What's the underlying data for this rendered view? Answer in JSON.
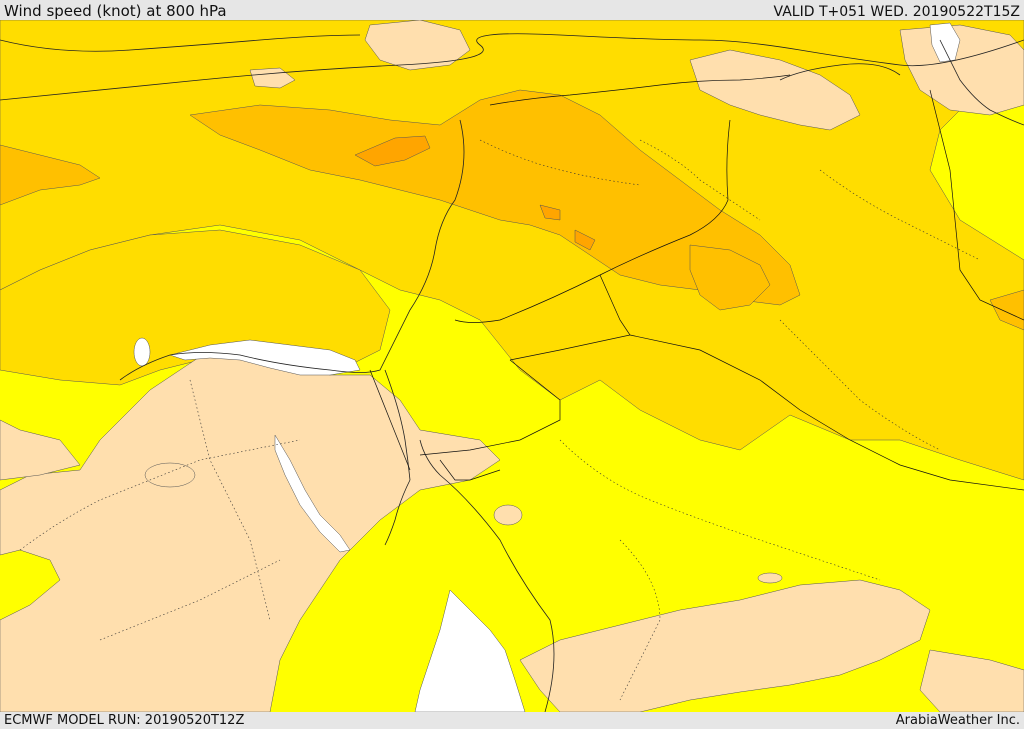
{
  "header": {
    "title": "Wind speed (knot) at 800 hPa",
    "valid_time": "VALID T+051 WED. 20190522T15Z"
  },
  "footer": {
    "model_run": "ECMWF MODEL RUN: 20190520T12Z",
    "credit": "ArabiaWeather Inc."
  },
  "map": {
    "field": "wind-speed-800hPa",
    "palette": {
      "lowest": "#ffdfae",
      "low": "#ffff00",
      "medium": "#ffdd00",
      "high": "#ffc000",
      "highest": "#ffa500",
      "sea_gap": "#ffffff"
    }
  }
}
